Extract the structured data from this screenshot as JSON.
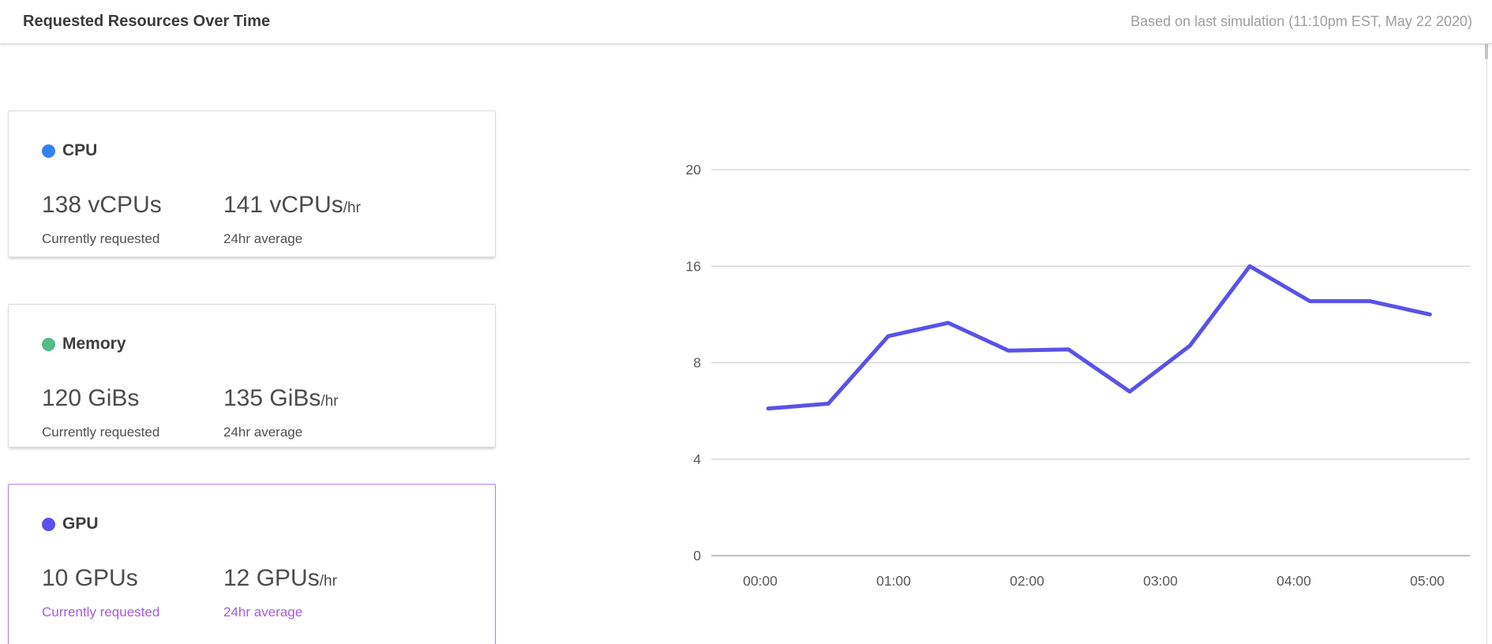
{
  "header": {
    "title": "Requested Resources Over Time",
    "subtitle": "Based on last simulation (11:10pm EST, May 22 2020)"
  },
  "cards": [
    {
      "id": "cpu",
      "label": "CPU",
      "dot_color": "#3380f0",
      "current_value": "138 vCPUs",
      "current_caption": "Currently requested",
      "average_value": "141 vCPUs",
      "average_suffix": "/hr",
      "average_caption": "24hr average",
      "selected": false
    },
    {
      "id": "memory",
      "label": "Memory",
      "dot_color": "#52bd8a",
      "current_value": "120 GiBs",
      "current_caption": "Currently requested",
      "average_value": "135 GiBs",
      "average_suffix": "/hr",
      "average_caption": "24hr average",
      "selected": false
    },
    {
      "id": "gpu",
      "label": "GPU",
      "dot_color": "#5b50ee",
      "current_value": "10 GPUs",
      "current_caption": "Currently requested",
      "average_value": "12 GPUs",
      "average_suffix": "/hr",
      "average_caption": "24hr average",
      "selected": true,
      "selected_border_color": "#ad7ef2",
      "selected_caption_color": "#a55bdd"
    }
  ],
  "chart_data": {
    "type": "line",
    "title": "",
    "xlabel": "",
    "ylabel": "",
    "x_ticks": [
      "00:00",
      "01:00",
      "02:00",
      "03:00",
      "04:00",
      "05:00"
    ],
    "x_tick_hours": [
      0,
      1,
      2,
      3,
      4,
      5
    ],
    "y_ticks": [
      0,
      4,
      8,
      16,
      20
    ],
    "y_ticks_equally_spaced": true,
    "grid": true,
    "legend": "none",
    "axis_label_color": "#59595b",
    "gridline_color": "#cfcfcf",
    "baseline_color": "#c2c2c2",
    "series": [
      {
        "name": "GPU requested",
        "color": "#5a52e8",
        "x_hours": [
          0.06,
          0.51,
          0.96,
          1.41,
          1.86,
          2.31,
          2.77,
          3.22,
          3.67,
          4.12,
          4.57,
          5.02
        ],
        "values": [
          6.1,
          6.3,
          10.2,
          11.3,
          9.0,
          9.1,
          6.8,
          9.4,
          16.0,
          13.1,
          13.1,
          12.0
        ]
      }
    ]
  }
}
